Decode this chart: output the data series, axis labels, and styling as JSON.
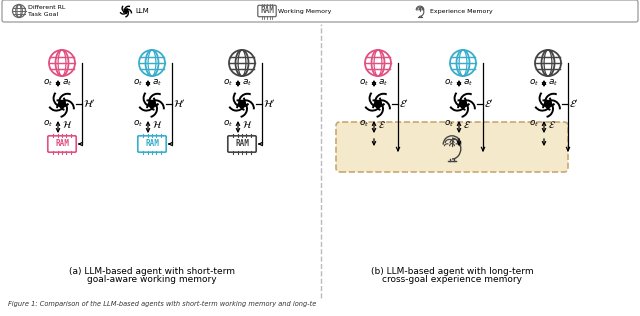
{
  "bg": "#ffffff",
  "pink": "#e05080",
  "blue": "#3aadcc",
  "dark": "#444444",
  "tan": "#f5e9cc",
  "tan_border": "#c8a870",
  "legend_border": "#999999",
  "panel_a_label1": "(a) LLM-based agent with short-term",
  "panel_a_label2": "goal-aware working memory",
  "panel_b_label1": "(b) LLM-based agent with long-term",
  "panel_b_label2": "cross-goal experience memory",
  "caption": "Figure 1: Comparison of the LLM-based agents with short-term working memory and long-te"
}
